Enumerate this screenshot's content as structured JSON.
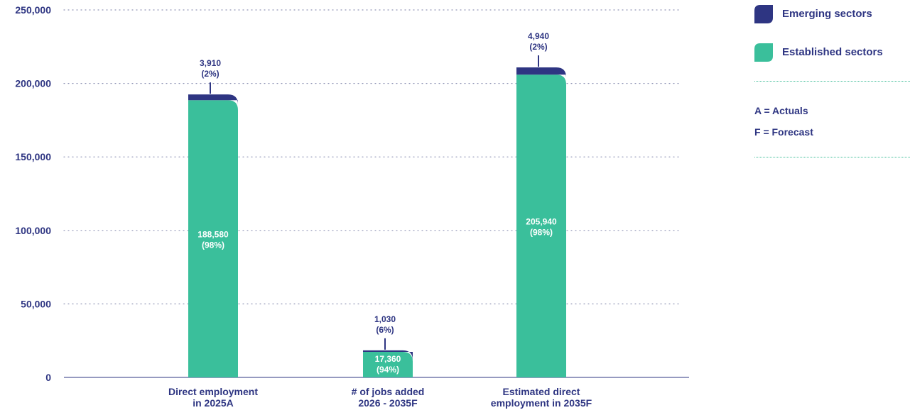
{
  "chart_data": {
    "type": "bar",
    "stacked": true,
    "categories": [
      [
        "Direct employment",
        "in 2025A"
      ],
      [
        "# of jobs added",
        "2026 - 2035F"
      ],
      [
        "Estimated direct",
        "employment in 2035F"
      ]
    ],
    "series": [
      {
        "name": "Established sectors",
        "color": "#3abf9b",
        "values": [
          188580,
          17360,
          205940
        ],
        "labels": [
          [
            "188,580",
            "(98%)"
          ],
          [
            "17,360",
            "(94%)"
          ],
          [
            "205,940",
            "(98%)"
          ]
        ]
      },
      {
        "name": "Emerging sectors",
        "color": "#2e3582",
        "values": [
          3910,
          1030,
          4940
        ],
        "labels": [
          [
            "3,910",
            "(2%)"
          ],
          [
            "1,030",
            "(6%)"
          ],
          [
            "4,940",
            "(2%)"
          ]
        ]
      }
    ],
    "ylim": [
      0,
      250000
    ],
    "yticks": [
      0,
      50000,
      100000,
      150000,
      200000,
      250000
    ],
    "ytick_labels": [
      "0",
      "50,000",
      "100,000",
      "150,000",
      "200,000",
      "250,000"
    ],
    "grid": true,
    "legend_position": "top-right"
  },
  "legend": [
    {
      "label": "Emerging sectors",
      "color": "#2e3582",
      "icon": "emerging-swatch"
    },
    {
      "label": "Established sectors",
      "color": "#3abf9b",
      "icon": "established-swatch"
    }
  ],
  "notes": [
    "A = Actuals",
    "F = Forecast"
  ]
}
